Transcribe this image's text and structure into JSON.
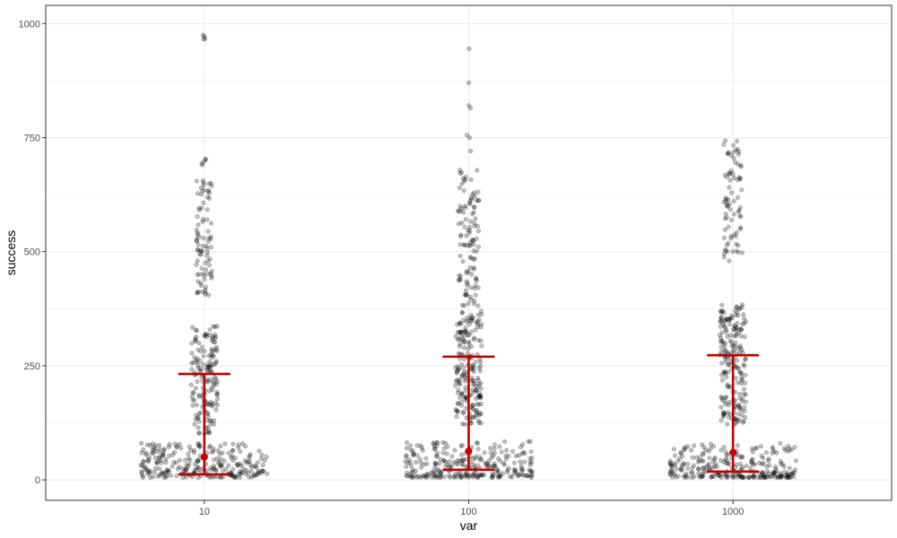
{
  "chart_data": {
    "type": "scatter",
    "subtype": "jitter-with-errorbars",
    "title": "",
    "xlabel": "var",
    "ylabel": "success",
    "categories": [
      "10",
      "100",
      "1000"
    ],
    "ylim": [
      -45,
      1040
    ],
    "y_ticks": [
      "0",
      "250",
      "500",
      "750",
      "1000"
    ],
    "y_tick_values": [
      0,
      250,
      500,
      750,
      1000
    ],
    "grid": true,
    "theme": "bw",
    "colors": {
      "points": "#000000",
      "summary": "#c00000",
      "grid": "#ebebeb",
      "panel_border": "#333333",
      "tick_text": "#4d4d4d"
    },
    "summary": [
      {
        "category": "10",
        "mean": 50,
        "lower": 12,
        "upper": 232
      },
      {
        "category": "100",
        "mean": 63,
        "lower": 22,
        "upper": 270
      },
      {
        "category": "1000",
        "mean": 60,
        "lower": 18,
        "upper": 273
      }
    ],
    "point_clusters": [
      {
        "category": "10",
        "n": 260,
        "y_min": 5,
        "y_max": 80,
        "spread": 0.24
      },
      {
        "category": "10",
        "n": 160,
        "y_min": 100,
        "y_max": 340,
        "spread": 0.05
      },
      {
        "category": "10",
        "n": 85,
        "y_min": 400,
        "y_max": 660,
        "spread": 0.03
      },
      {
        "category": "10",
        "n": 5,
        "y_min": 690,
        "y_max": 705,
        "spread": 0.01
      },
      {
        "category": "10",
        "n": 4,
        "y_min": 940,
        "y_max": 992,
        "spread": 0.005
      },
      {
        "category": "100",
        "n": 270,
        "y_min": 5,
        "y_max": 85,
        "spread": 0.24
      },
      {
        "category": "100",
        "n": 200,
        "y_min": 120,
        "y_max": 370,
        "spread": 0.05
      },
      {
        "category": "100",
        "n": 110,
        "y_min": 380,
        "y_max": 680,
        "spread": 0.04
      },
      {
        "category": "100",
        "n": 6,
        "y_min": 700,
        "y_max": 880,
        "spread": 0.008
      },
      {
        "category": "100",
        "n": 1,
        "y_min": 945,
        "y_max": 945,
        "spread": 0.002
      },
      {
        "category": "1000",
        "n": 265,
        "y_min": 5,
        "y_max": 80,
        "spread": 0.24
      },
      {
        "category": "1000",
        "n": 200,
        "y_min": 120,
        "y_max": 385,
        "spread": 0.05
      },
      {
        "category": "1000",
        "n": 80,
        "y_min": 475,
        "y_max": 745,
        "spread": 0.035
      }
    ]
  }
}
